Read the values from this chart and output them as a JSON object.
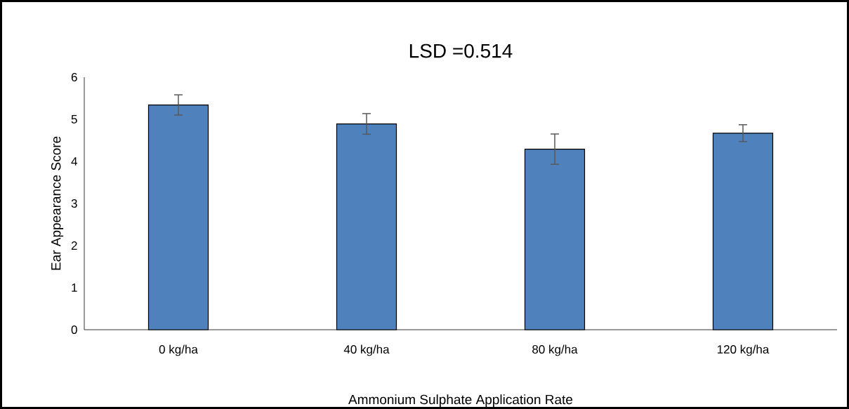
{
  "chart_data": {
    "type": "bar",
    "title": "LSD =0.514",
    "xlabel": "Ammonium Sulphate Application Rate",
    "ylabel": "Ear Appearance Score",
    "categories": [
      "0 kg/ha",
      "40 kg/ha",
      "80 kg/ha",
      "120 kg/ha"
    ],
    "values": [
      5.34,
      4.89,
      4.29,
      4.67
    ],
    "errors": [
      0.24,
      0.245,
      0.36,
      0.2
    ],
    "color": "#4f81bd",
    "ylim": [
      0,
      6
    ],
    "yticks": [
      0,
      1,
      2,
      3,
      4,
      5,
      6
    ],
    "grid": false
  }
}
